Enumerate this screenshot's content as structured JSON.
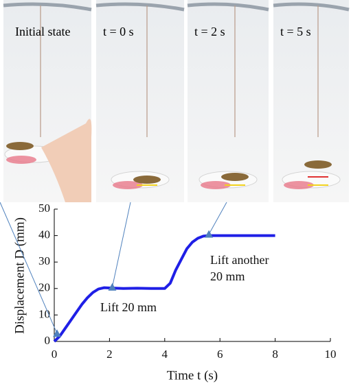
{
  "chart_data": {
    "type": "line",
    "panels": [
      "Initial state",
      "t = 0 s",
      "t = 2 s",
      "t = 5 s"
    ],
    "x_label": "Time t (s)",
    "y_label": "Displacement D (mm)",
    "x": [
      0,
      0.2,
      0.4,
      0.6,
      0.8,
      1.0,
      1.2,
      1.4,
      1.6,
      1.8,
      2.0,
      2.5,
      3.0,
      3.5,
      4.0,
      4.2,
      4.4,
      4.6,
      4.8,
      5.0,
      5.2,
      5.4,
      5.6,
      6.0,
      6.5,
      7.0,
      7.5,
      8.0
    ],
    "series": [
      {
        "color": "#1f1fe6",
        "values": [
          0,
          2,
          5,
          8,
          11,
          14,
          16.5,
          18.5,
          19.8,
          20.3,
          20.2,
          20,
          20.1,
          20,
          20,
          22,
          27,
          31,
          35,
          37.5,
          39,
          39.8,
          40,
          40,
          40,
          40,
          40,
          40
        ]
      }
    ],
    "markers": {
      "color": "#4f81bd",
      "x": [
        0.1,
        2.1,
        5.6
      ],
      "values": [
        3,
        20.5,
        40.5
      ]
    },
    "annotations": [
      "Lift 20 mm",
      "Lift another",
      "20 mm"
    ],
    "xlim": [
      0,
      10
    ],
    "xticks": [
      0,
      2,
      4,
      6,
      8,
      10
    ],
    "ylim": [
      0,
      50
    ],
    "yticks": [
      0,
      10,
      20,
      30,
      40,
      50
    ]
  }
}
